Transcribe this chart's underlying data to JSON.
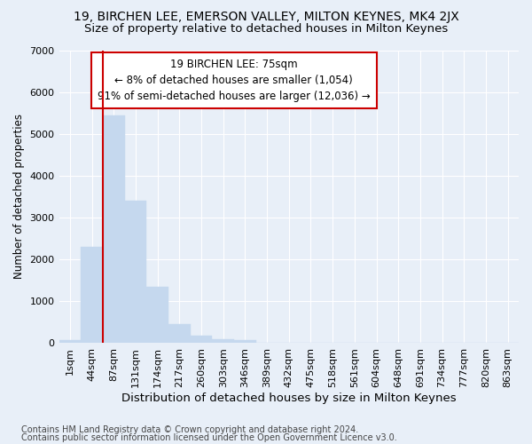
{
  "title": "19, BIRCHEN LEE, EMERSON VALLEY, MILTON KEYNES, MK4 2JX",
  "subtitle": "Size of property relative to detached houses in Milton Keynes",
  "xlabel": "Distribution of detached houses by size in Milton Keynes",
  "ylabel": "Number of detached properties",
  "bar_color": "#c5d8ee",
  "bar_edge_color": "#c5d8ee",
  "background_color": "#e8eff8",
  "categories": [
    "1sqm",
    "44sqm",
    "87sqm",
    "131sqm",
    "174sqm",
    "217sqm",
    "260sqm",
    "303sqm",
    "346sqm",
    "389sqm",
    "432sqm",
    "475sqm",
    "518sqm",
    "561sqm",
    "604sqm",
    "648sqm",
    "691sqm",
    "734sqm",
    "777sqm",
    "820sqm",
    "863sqm"
  ],
  "values": [
    80,
    2300,
    5450,
    3400,
    1350,
    450,
    175,
    100,
    80,
    0,
    0,
    0,
    0,
    0,
    0,
    0,
    0,
    0,
    0,
    0,
    0
  ],
  "ylim": [
    0,
    7000
  ],
  "yticks": [
    0,
    1000,
    2000,
    3000,
    4000,
    5000,
    6000,
    7000
  ],
  "vline_color": "#cc0000",
  "vline_x": 2.0,
  "annotation_text": "19 BIRCHEN LEE: 75sqm\n← 8% of detached houses are smaller (1,054)\n91% of semi-detached houses are larger (12,036) →",
  "annotation_box_facecolor": "white",
  "annotation_box_edgecolor": "#cc0000",
  "footer_line1": "Contains HM Land Registry data © Crown copyright and database right 2024.",
  "footer_line2": "Contains public sector information licensed under the Open Government Licence v3.0.",
  "grid_color": "#ffffff",
  "title_fontsize": 10,
  "subtitle_fontsize": 9.5,
  "ylabel_fontsize": 8.5,
  "xlabel_fontsize": 9.5,
  "tick_fontsize": 8,
  "annotation_fontsize": 8.5,
  "footer_fontsize": 7
}
